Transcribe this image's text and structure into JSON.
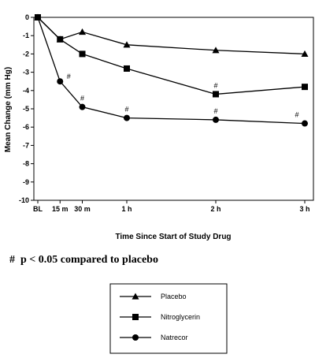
{
  "chart_data": {
    "type": "line",
    "xlabel": "Time Since Start of Study Drug",
    "ylabel": "Mean Change (mm Hg)",
    "x": [
      0,
      15,
      30,
      60,
      120,
      180
    ],
    "x_tick_labels": [
      "BL",
      "15 m",
      "30 m",
      "1 h",
      "2 h",
      "3 h"
    ],
    "ylim": [
      -10,
      0
    ],
    "y_ticks": [
      0,
      -1,
      -2,
      -3,
      -4,
      -5,
      -6,
      -7,
      -8,
      -9,
      -10
    ],
    "grid": false,
    "legend_position": "bottom-center",
    "series": [
      {
        "name": "Placebo",
        "marker": "triangle",
        "values": [
          0,
          -1.2,
          -0.8,
          -1.5,
          -1.8,
          -2.0
        ]
      },
      {
        "name": "Nitroglycerin",
        "marker": "square",
        "values": [
          0,
          -1.2,
          -2.0,
          -2.8,
          -4.2,
          -3.8
        ]
      },
      {
        "name": "Natrecor",
        "marker": "circle",
        "values": [
          0,
          -3.5,
          -4.9,
          -5.5,
          -5.6,
          -5.8
        ]
      }
    ],
    "annotations": [
      {
        "text": "#",
        "series": "Natrecor",
        "x": 15
      },
      {
        "text": "#",
        "series": "Natrecor",
        "x": 30
      },
      {
        "text": "#",
        "series": "Natrecor",
        "x": 60
      },
      {
        "text": "#",
        "series": "Nitroglycerin",
        "x": 120
      },
      {
        "text": "#",
        "series": "Natrecor",
        "x": 120
      },
      {
        "text": "#",
        "series": "Natrecor",
        "x": 180
      }
    ],
    "footnote": "#  p < 0.05 compared to placebo"
  }
}
